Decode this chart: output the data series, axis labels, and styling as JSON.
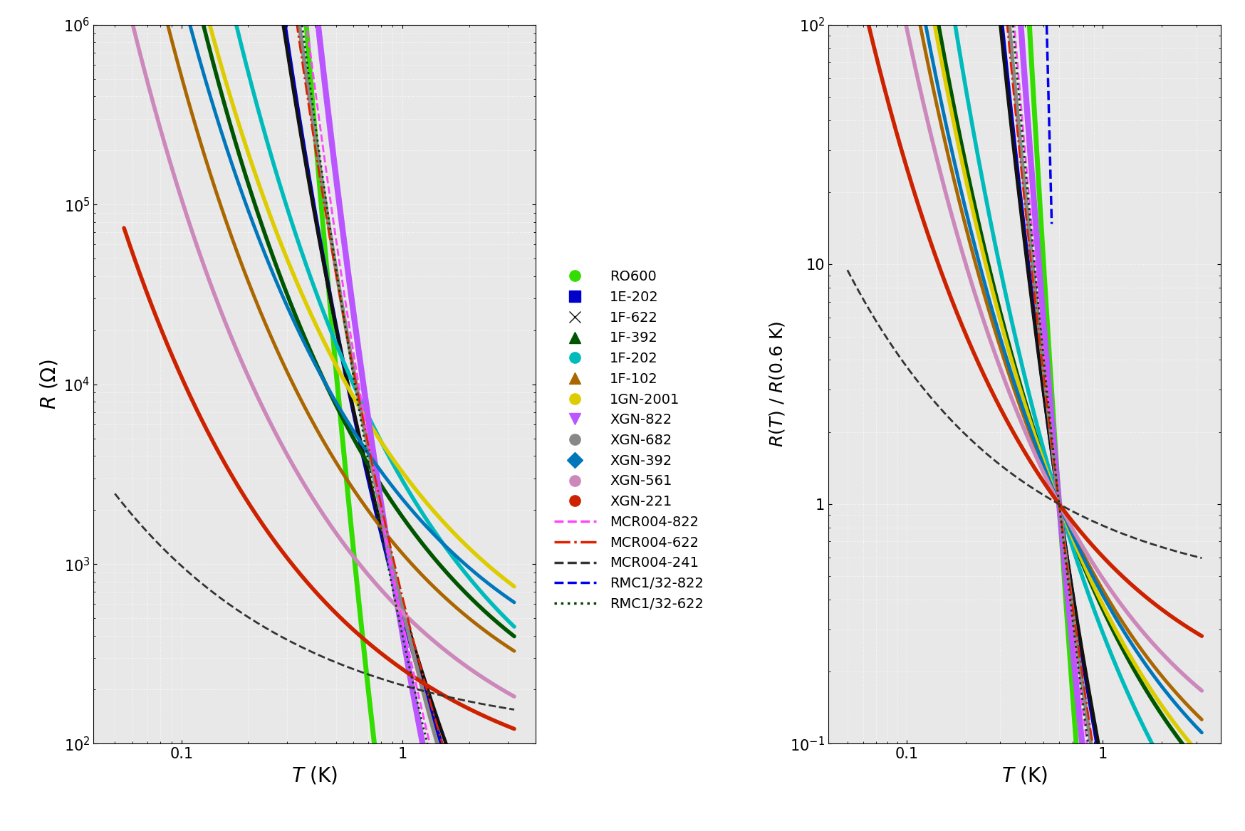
{
  "title": "",
  "left_ylabel": "$R$ ($\\Omega$)",
  "right_ylabel": "$R(T)$ / $R$(0.6 K)",
  "xlabel": "$T$ (K)",
  "xlim_left": [
    0.04,
    4.0
  ],
  "xlim_right": [
    0.04,
    4.0
  ],
  "ylim_left": [
    100.0,
    1000000.0
  ],
  "ylim_right": [
    0.1,
    100
  ],
  "T_ref": 0.6,
  "series": [
    {
      "name": "RO600",
      "color": "#33dd00",
      "lw": 5.0,
      "ls": "-",
      "T_min": 0.055,
      "T_max": 3.2,
      "R_Tref": 1200,
      "T0": 350.0,
      "n": 0.5
    },
    {
      "name": "1E-202",
      "color": "#0000cc",
      "lw": 4.0,
      "ls": "-",
      "T_min": 0.055,
      "T_max": 2.2,
      "R_Tref": 7000,
      "T0": 80.0,
      "n": 0.5
    },
    {
      "name": "1F-622",
      "color": "#111111",
      "lw": 3.5,
      "ls": "-",
      "T_min": 0.055,
      "T_max": 2.2,
      "R_Tref": 7200,
      "T0": 75.0,
      "n": 0.5
    },
    {
      "name": "1F-392",
      "color": "#005500",
      "lw": 4.0,
      "ls": "-",
      "T_min": 0.055,
      "T_max": 3.2,
      "R_Tref": 5000,
      "T0": 12.0,
      "n": 0.5
    },
    {
      "name": "1F-202",
      "color": "#00bbbb",
      "lw": 4.0,
      "ls": "-",
      "T_min": 0.055,
      "T_max": 3.2,
      "R_Tref": 10000,
      "T0": 18.0,
      "n": 0.5
    },
    {
      "name": "1F-102",
      "color": "#aa6600",
      "lw": 3.5,
      "ls": "-",
      "T_min": 0.055,
      "T_max": 3.2,
      "R_Tref": 2600,
      "T0": 8.0,
      "n": 0.5
    },
    {
      "name": "1GN-2001",
      "color": "#ddcc00",
      "lw": 4.0,
      "ls": "-",
      "T_min": 0.055,
      "T_max": 3.2,
      "R_Tref": 8500,
      "T0": 11.0,
      "n": 0.5
    },
    {
      "name": "XGN-822",
      "color": "#bb55ff",
      "lw": 6.0,
      "ls": "-",
      "T_min": 0.055,
      "T_max": 3.2,
      "R_Tref": 25000,
      "T0": 200.0,
      "n": 0.5
    },
    {
      "name": "XGN-682",
      "color": "#888888",
      "lw": 4.0,
      "ls": "-",
      "T_min": 0.055,
      "T_max": 3.2,
      "R_Tref": 12000,
      "T0": 110.0,
      "n": 0.5
    },
    {
      "name": "XGN-392",
      "color": "#0077bb",
      "lw": 3.5,
      "ls": "-",
      "T_min": 0.055,
      "T_max": 3.2,
      "R_Tref": 5500,
      "T0": 9.0,
      "n": 0.5
    },
    {
      "name": "XGN-561",
      "color": "#cc88bb",
      "lw": 4.0,
      "ls": "-",
      "T_min": 0.055,
      "T_max": 3.2,
      "R_Tref": 1100,
      "T0": 6.0,
      "n": 0.5
    },
    {
      "name": "XGN-221",
      "color": "#cc2200",
      "lw": 4.0,
      "ls": "-",
      "T_min": 0.055,
      "T_max": 3.2,
      "R_Tref": 430,
      "T0": 3.0,
      "n": 0.5
    },
    {
      "name": "MCR004-822",
      "color": "#ff44ff",
      "lw": 2.0,
      "ls": "--",
      "T_min": 0.06,
      "T_max": 3.0,
      "R_Tref": 15000,
      "T0": 140.0,
      "n": 0.5
    },
    {
      "name": "MCR004-622",
      "color": "#dd2200",
      "lw": 2.0,
      "ls": "-.",
      "T_min": 0.06,
      "T_max": 3.0,
      "R_Tref": 12000,
      "T0": 100.0,
      "n": 0.5
    },
    {
      "name": "MCR004-241",
      "color": "#333333",
      "lw": 2.0,
      "ls": "--",
      "T_min": 0.05,
      "T_max": 3.2,
      "R_Tref": 260,
      "T0": 0.5,
      "n": 0.5
    },
    {
      "name": "RMC1/32-822",
      "color": "#0000ee",
      "lw": 2.5,
      "ls": "--",
      "T_min": 0.05,
      "T_max": 0.55,
      "R_Tref": 80000,
      "T0": 2200.0,
      "n": 0.5
    },
    {
      "name": "RMC1/32-622",
      "color": "#004400",
      "lw": 2.0,
      "ls": ":",
      "T_min": 0.05,
      "T_max": 3.0,
      "R_Tref": 11000,
      "T0": 130.0,
      "n": 0.5
    }
  ],
  "legend_entries_solid": [
    {
      "name": "RO600",
      "color": "#33dd00",
      "marker": "o"
    },
    {
      "name": "1E-202",
      "color": "#0000cc",
      "marker": "s"
    },
    {
      "name": "1F-622",
      "color": "#111111",
      "marker": "x"
    },
    {
      "name": "1F-392",
      "color": "#005500",
      "marker": "^"
    },
    {
      "name": "1F-202",
      "color": "#00bbbb",
      "marker": "o"
    },
    {
      "name": "1F-102",
      "color": "#aa6600",
      "marker": "^"
    },
    {
      "name": "1GN-2001",
      "color": "#ddcc00",
      "marker": "o"
    },
    {
      "name": "XGN-822",
      "color": "#bb55ff",
      "marker": "v"
    },
    {
      "name": "XGN-682",
      "color": "#888888",
      "marker": "o"
    },
    {
      "name": "XGN-392",
      "color": "#0077bb",
      "marker": "D"
    },
    {
      "name": "XGN-561",
      "color": "#cc88bb",
      "marker": "o"
    },
    {
      "name": "XGN-221",
      "color": "#cc2200",
      "marker": "o"
    }
  ],
  "legend_entries_line": [
    {
      "name": "MCR004-822",
      "color": "#ff44ff",
      "ls": "--"
    },
    {
      "name": "MCR004-622",
      "color": "#dd2200",
      "ls": "-."
    },
    {
      "name": "MCR004-241",
      "color": "#333333",
      "ls": "--"
    },
    {
      "name": "RMC1/32-822",
      "color": "#0000ee",
      "ls": "--"
    },
    {
      "name": "RMC1/32-622",
      "color": "#004400",
      "ls": ":"
    }
  ],
  "bg_color": "#e8e8e8",
  "grid_color": "#ffffff",
  "grid_lw": 0.6
}
